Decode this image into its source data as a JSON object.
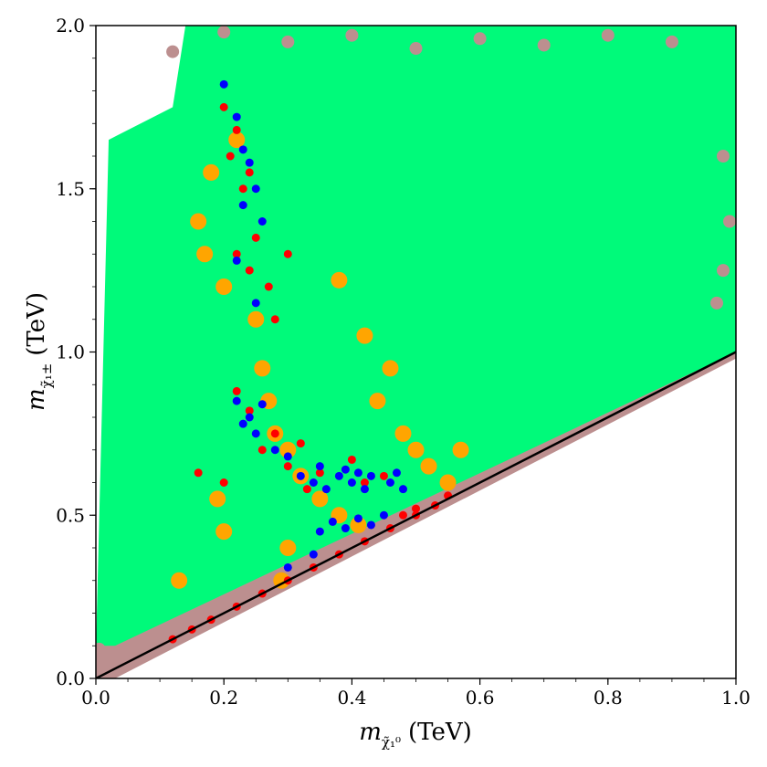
{
  "chart_data": {
    "type": "scatter",
    "title": "",
    "xlabel": {
      "symbol": "m",
      "subscript": "χ̃₁⁰",
      "unit": "(TeV)"
    },
    "ylabel": {
      "symbol": "m",
      "subscript": "χ̃₁±",
      "unit": "(TeV)"
    },
    "xlim": [
      0.0,
      1.0
    ],
    "ylim": [
      0.0,
      2.0
    ],
    "x_ticks": [
      "0.0",
      "0.2",
      "0.4",
      "0.6",
      "0.8",
      "1.0"
    ],
    "y_ticks": [
      "0.0",
      "0.5",
      "1.0",
      "1.5",
      "2.0"
    ],
    "grid": false,
    "legend": "none",
    "reference_line": {
      "equation": "y = x",
      "color": "#000000"
    },
    "series": [
      {
        "color": "#bc8f8f",
        "description_points": [
          [
            0.01,
            0.02
          ],
          [
            0.02,
            0.06
          ],
          [
            0.005,
            0.09
          ],
          [
            0.12,
            1.92
          ],
          [
            0.2,
            1.98
          ],
          [
            0.3,
            1.95
          ],
          [
            0.4,
            1.97
          ],
          [
            0.5,
            1.93
          ],
          [
            0.6,
            1.96
          ],
          [
            0.7,
            1.94
          ],
          [
            0.8,
            1.97
          ],
          [
            0.9,
            1.95
          ],
          [
            0.98,
            1.6
          ],
          [
            0.99,
            1.4
          ],
          [
            0.98,
            1.25
          ],
          [
            0.97,
            1.15
          ]
        ],
        "region": "mass-degenerate edge y≈x and boundary scatter"
      },
      {
        "color": "#00fa7a",
        "region": "upper-left triangle above y = x, x from 0.0 to 1.0, y up to 2.0"
      },
      {
        "color": "#ffa500",
        "points": [
          [
            0.16,
            1.4
          ],
          [
            0.17,
            1.3
          ],
          [
            0.18,
            1.55
          ],
          [
            0.2,
            1.2
          ],
          [
            0.22,
            1.65
          ],
          [
            0.25,
            1.1
          ],
          [
            0.26,
            0.95
          ],
          [
            0.27,
            0.85
          ],
          [
            0.28,
            0.75
          ],
          [
            0.3,
            0.7
          ],
          [
            0.32,
            0.62
          ],
          [
            0.35,
            0.55
          ],
          [
            0.38,
            0.5
          ],
          [
            0.41,
            0.47
          ],
          [
            0.44,
            0.85
          ],
          [
            0.46,
            0.95
          ],
          [
            0.48,
            0.75
          ],
          [
            0.5,
            0.7
          ],
          [
            0.52,
            0.65
          ],
          [
            0.55,
            0.6
          ],
          [
            0.57,
            0.7
          ],
          [
            0.38,
            1.22
          ],
          [
            0.42,
            1.05
          ],
          [
            0.3,
            0.4
          ],
          [
            0.29,
            0.3
          ],
          [
            0.19,
            0.55
          ],
          [
            0.2,
            0.45
          ],
          [
            0.13,
            0.3
          ]
        ]
      },
      {
        "color": "#ff0000",
        "points": [
          [
            0.2,
            1.75
          ],
          [
            0.21,
            1.6
          ],
          [
            0.22,
            1.68
          ],
          [
            0.23,
            1.5
          ],
          [
            0.24,
            1.55
          ],
          [
            0.22,
            1.3
          ],
          [
            0.24,
            1.25
          ],
          [
            0.25,
            1.35
          ],
          [
            0.27,
            1.2
          ],
          [
            0.28,
            1.1
          ],
          [
            0.3,
            1.3
          ],
          [
            0.22,
            0.88
          ],
          [
            0.24,
            0.82
          ],
          [
            0.26,
            0.7
          ],
          [
            0.28,
            0.75
          ],
          [
            0.3,
            0.65
          ],
          [
            0.32,
            0.72
          ],
          [
            0.33,
            0.58
          ],
          [
            0.35,
            0.63
          ],
          [
            0.4,
            0.67
          ],
          [
            0.42,
            0.6
          ],
          [
            0.45,
            0.62
          ],
          [
            0.48,
            0.5
          ],
          [
            0.5,
            0.52
          ],
          [
            0.55,
            0.56
          ],
          [
            0.12,
            0.12
          ],
          [
            0.15,
            0.15
          ],
          [
            0.18,
            0.18
          ],
          [
            0.22,
            0.22
          ],
          [
            0.26,
            0.26
          ],
          [
            0.3,
            0.3
          ],
          [
            0.34,
            0.34
          ],
          [
            0.38,
            0.38
          ],
          [
            0.42,
            0.42
          ],
          [
            0.46,
            0.46
          ],
          [
            0.5,
            0.5
          ],
          [
            0.53,
            0.53
          ],
          [
            0.16,
            0.63
          ],
          [
            0.2,
            0.6
          ]
        ]
      },
      {
        "color": "#0000ff",
        "points": [
          [
            0.2,
            1.82
          ],
          [
            0.22,
            1.72
          ],
          [
            0.23,
            1.62
          ],
          [
            0.24,
            1.58
          ],
          [
            0.25,
            1.5
          ],
          [
            0.23,
            1.45
          ],
          [
            0.26,
            1.4
          ],
          [
            0.22,
            1.28
          ],
          [
            0.25,
            1.15
          ],
          [
            0.22,
            0.85
          ],
          [
            0.23,
            0.78
          ],
          [
            0.24,
            0.8
          ],
          [
            0.25,
            0.75
          ],
          [
            0.26,
            0.84
          ],
          [
            0.28,
            0.7
          ],
          [
            0.3,
            0.68
          ],
          [
            0.32,
            0.62
          ],
          [
            0.34,
            0.6
          ],
          [
            0.35,
            0.65
          ],
          [
            0.36,
            0.58
          ],
          [
            0.38,
            0.62
          ],
          [
            0.39,
            0.64
          ],
          [
            0.4,
            0.6
          ],
          [
            0.41,
            0.63
          ],
          [
            0.42,
            0.58
          ],
          [
            0.43,
            0.62
          ],
          [
            0.46,
            0.6
          ],
          [
            0.47,
            0.63
          ],
          [
            0.35,
            0.45
          ],
          [
            0.37,
            0.48
          ],
          [
            0.39,
            0.46
          ],
          [
            0.41,
            0.49
          ],
          [
            0.43,
            0.47
          ],
          [
            0.45,
            0.5
          ],
          [
            0.34,
            0.38
          ],
          [
            0.3,
            0.34
          ],
          [
            0.48,
            0.58
          ]
        ]
      }
    ]
  }
}
